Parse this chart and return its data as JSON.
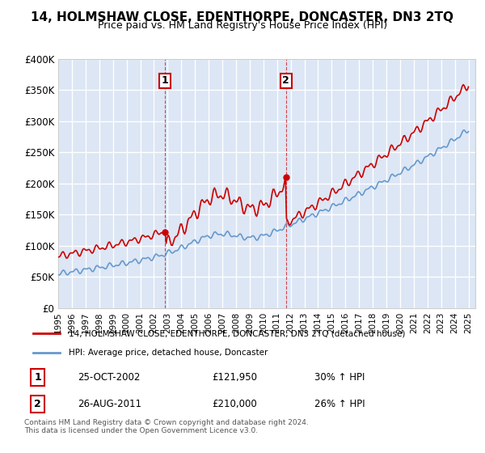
{
  "title": "14, HOLMSHAW CLOSE, EDENTHORPE, DONCASTER, DN3 2TQ",
  "subtitle": "Price paid vs. HM Land Registry's House Price Index (HPI)",
  "ylabel_ticks": [
    "£0",
    "£50K",
    "£100K",
    "£150K",
    "£200K",
    "£250K",
    "£300K",
    "£350K",
    "£400K"
  ],
  "ylim": [
    0,
    400000
  ],
  "xlim_start": 1995.0,
  "xlim_end": 2025.5,
  "sale1_date": 2002.82,
  "sale1_price": 121950,
  "sale1_label": "1",
  "sale2_date": 2011.65,
  "sale2_price": 210000,
  "sale2_label": "2",
  "red_line_color": "#cc0000",
  "blue_line_color": "#6699cc",
  "dashed_line_color": "#cc0000",
  "background_color": "#dce6f5",
  "plot_bg_color": "#dce6f5",
  "grid_color": "#ffffff",
  "legend_label_red": "14, HOLMSHAW CLOSE, EDENTHORPE, DONCASTER, DN3 2TQ (detached house)",
  "legend_label_blue": "HPI: Average price, detached house, Doncaster",
  "sale1_info": "1    25-OCT-2002         £121,950         30% ↑ HPI",
  "sale2_info": "2    26-AUG-2011         £210,000         26% ↑ HPI",
  "footnote": "Contains HM Land Registry data © Crown copyright and database right 2024.\nThis data is licensed under the Open Government Licence v3.0.",
  "vline1_x": 2002.82,
  "vline2_x": 2011.65
}
